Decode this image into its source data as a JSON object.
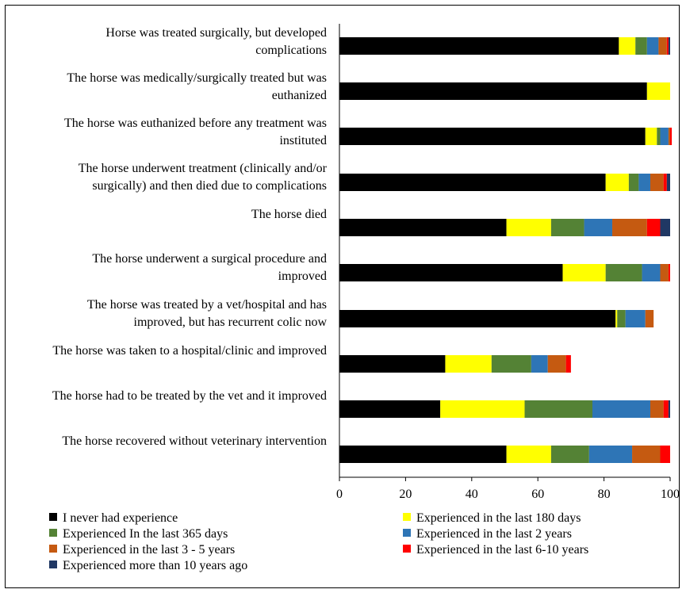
{
  "chart_data": {
    "type": "bar",
    "orientation": "horizontal",
    "stacked": true,
    "categories": [
      [
        "Horse was treated surgically, but developed",
        "complications"
      ],
      [
        "The horse was medically/surgically treated but was",
        "euthanized"
      ],
      [
        "The horse was euthanized before any treatment was",
        "instituted"
      ],
      [
        "The horse underwent treatment (clinically and/or",
        "surgically) and then died due to complications"
      ],
      [
        "The horse died"
      ],
      [
        "The horse underwent a surgical procedure and",
        "improved"
      ],
      [
        "The horse was treated by a vet/hospital and has",
        "improved, but has recurrent colic now"
      ],
      [
        "The horse was taken to a hospital/clinic and improved"
      ],
      [
        "The horse had to be treated by the vet and it improved"
      ],
      [
        "The horse recovered without veterinary intervention"
      ]
    ],
    "series": [
      {
        "name": "I never had experience",
        "color": "#000000",
        "values": [
          84.5,
          93,
          92.5,
          80.5,
          50.5,
          67.5,
          83.5,
          32,
          30.5,
          50.5
        ]
      },
      {
        "name": "Experienced in the last 180 days",
        "color": "#FFFF00",
        "values": [
          5,
          7,
          3.5,
          7,
          13.5,
          13,
          0.5,
          14,
          25.5,
          13.5
        ]
      },
      {
        "name": "Experienced In the last 365 days",
        "color": "#548235",
        "values": [
          3.5,
          0,
          1,
          3,
          10,
          11,
          2.5,
          12,
          20.5,
          11.5
        ]
      },
      {
        "name": "Experienced in the last 2 years",
        "color": "#2E75B6",
        "values": [
          3.5,
          0,
          2.5,
          3.5,
          8.5,
          5.5,
          6,
          5,
          17.5,
          13
        ]
      },
      {
        "name": "Experienced in the last 3 - 5 years",
        "color": "#C55A11",
        "values": [
          2.5,
          0,
          0.5,
          4,
          10.5,
          2.5,
          2.5,
          5.5,
          4,
          8.5
        ]
      },
      {
        "name": "Experienced in the last 6-10 years",
        "color": "#FF0000",
        "values": [
          0.5,
          0,
          0.5,
          1,
          4,
          0.5,
          0,
          1.5,
          1.5,
          3
        ]
      },
      {
        "name": "Experienced more than 10 years ago",
        "color": "#203864",
        "values": [
          0.5,
          0,
          0,
          1,
          3,
          0,
          0,
          0,
          0.5,
          0
        ]
      }
    ],
    "xlim": [
      0,
      100
    ],
    "xticks": [
      0,
      20,
      40,
      60,
      80,
      100
    ],
    "grid": false,
    "legend_position": "bottom"
  }
}
